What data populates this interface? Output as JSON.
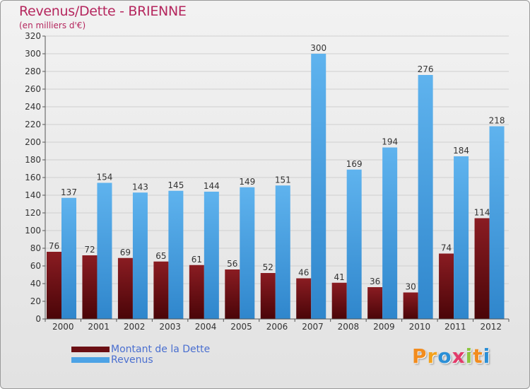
{
  "header": {
    "title": "Revenus/Dette - BRIENNE",
    "subtitle": "(en milliers d'€)"
  },
  "legend": {
    "items": [
      {
        "label": "Montant de la Dette",
        "color": "#6b0f14"
      },
      {
        "label": "Revenus",
        "color": "#4da3e6"
      }
    ]
  },
  "logo": {
    "text": "Proxiti",
    "letter_colors": [
      "#f28c1e",
      "#f2a21e",
      "#2b8fd6",
      "#e23b6a",
      "#8cc63f",
      "#f28c1e",
      "#2b8fd6"
    ]
  },
  "chart_data": {
    "type": "bar",
    "categories": [
      "2000",
      "2001",
      "2002",
      "2003",
      "2004",
      "2005",
      "2006",
      "2007",
      "2008",
      "2009",
      "2010",
      "2011",
      "2012"
    ],
    "series": [
      {
        "name": "Montant de la Dette",
        "color": "#6b0f14",
        "values": [
          76,
          72,
          69,
          65,
          61,
          56,
          52,
          46,
          41,
          36,
          30,
          74,
          114
        ]
      },
      {
        "name": "Revenus",
        "color": "#4da3e6",
        "values": [
          137,
          154,
          143,
          145,
          144,
          149,
          151,
          300,
          169,
          194,
          276,
          184,
          218
        ]
      }
    ],
    "ylim": [
      0,
      320
    ],
    "yticks": [
      0,
      20,
      40,
      60,
      80,
      100,
      120,
      140,
      160,
      180,
      200,
      220,
      240,
      260,
      280,
      300,
      320
    ],
    "grid": true,
    "legend_position": "bottom-left"
  }
}
